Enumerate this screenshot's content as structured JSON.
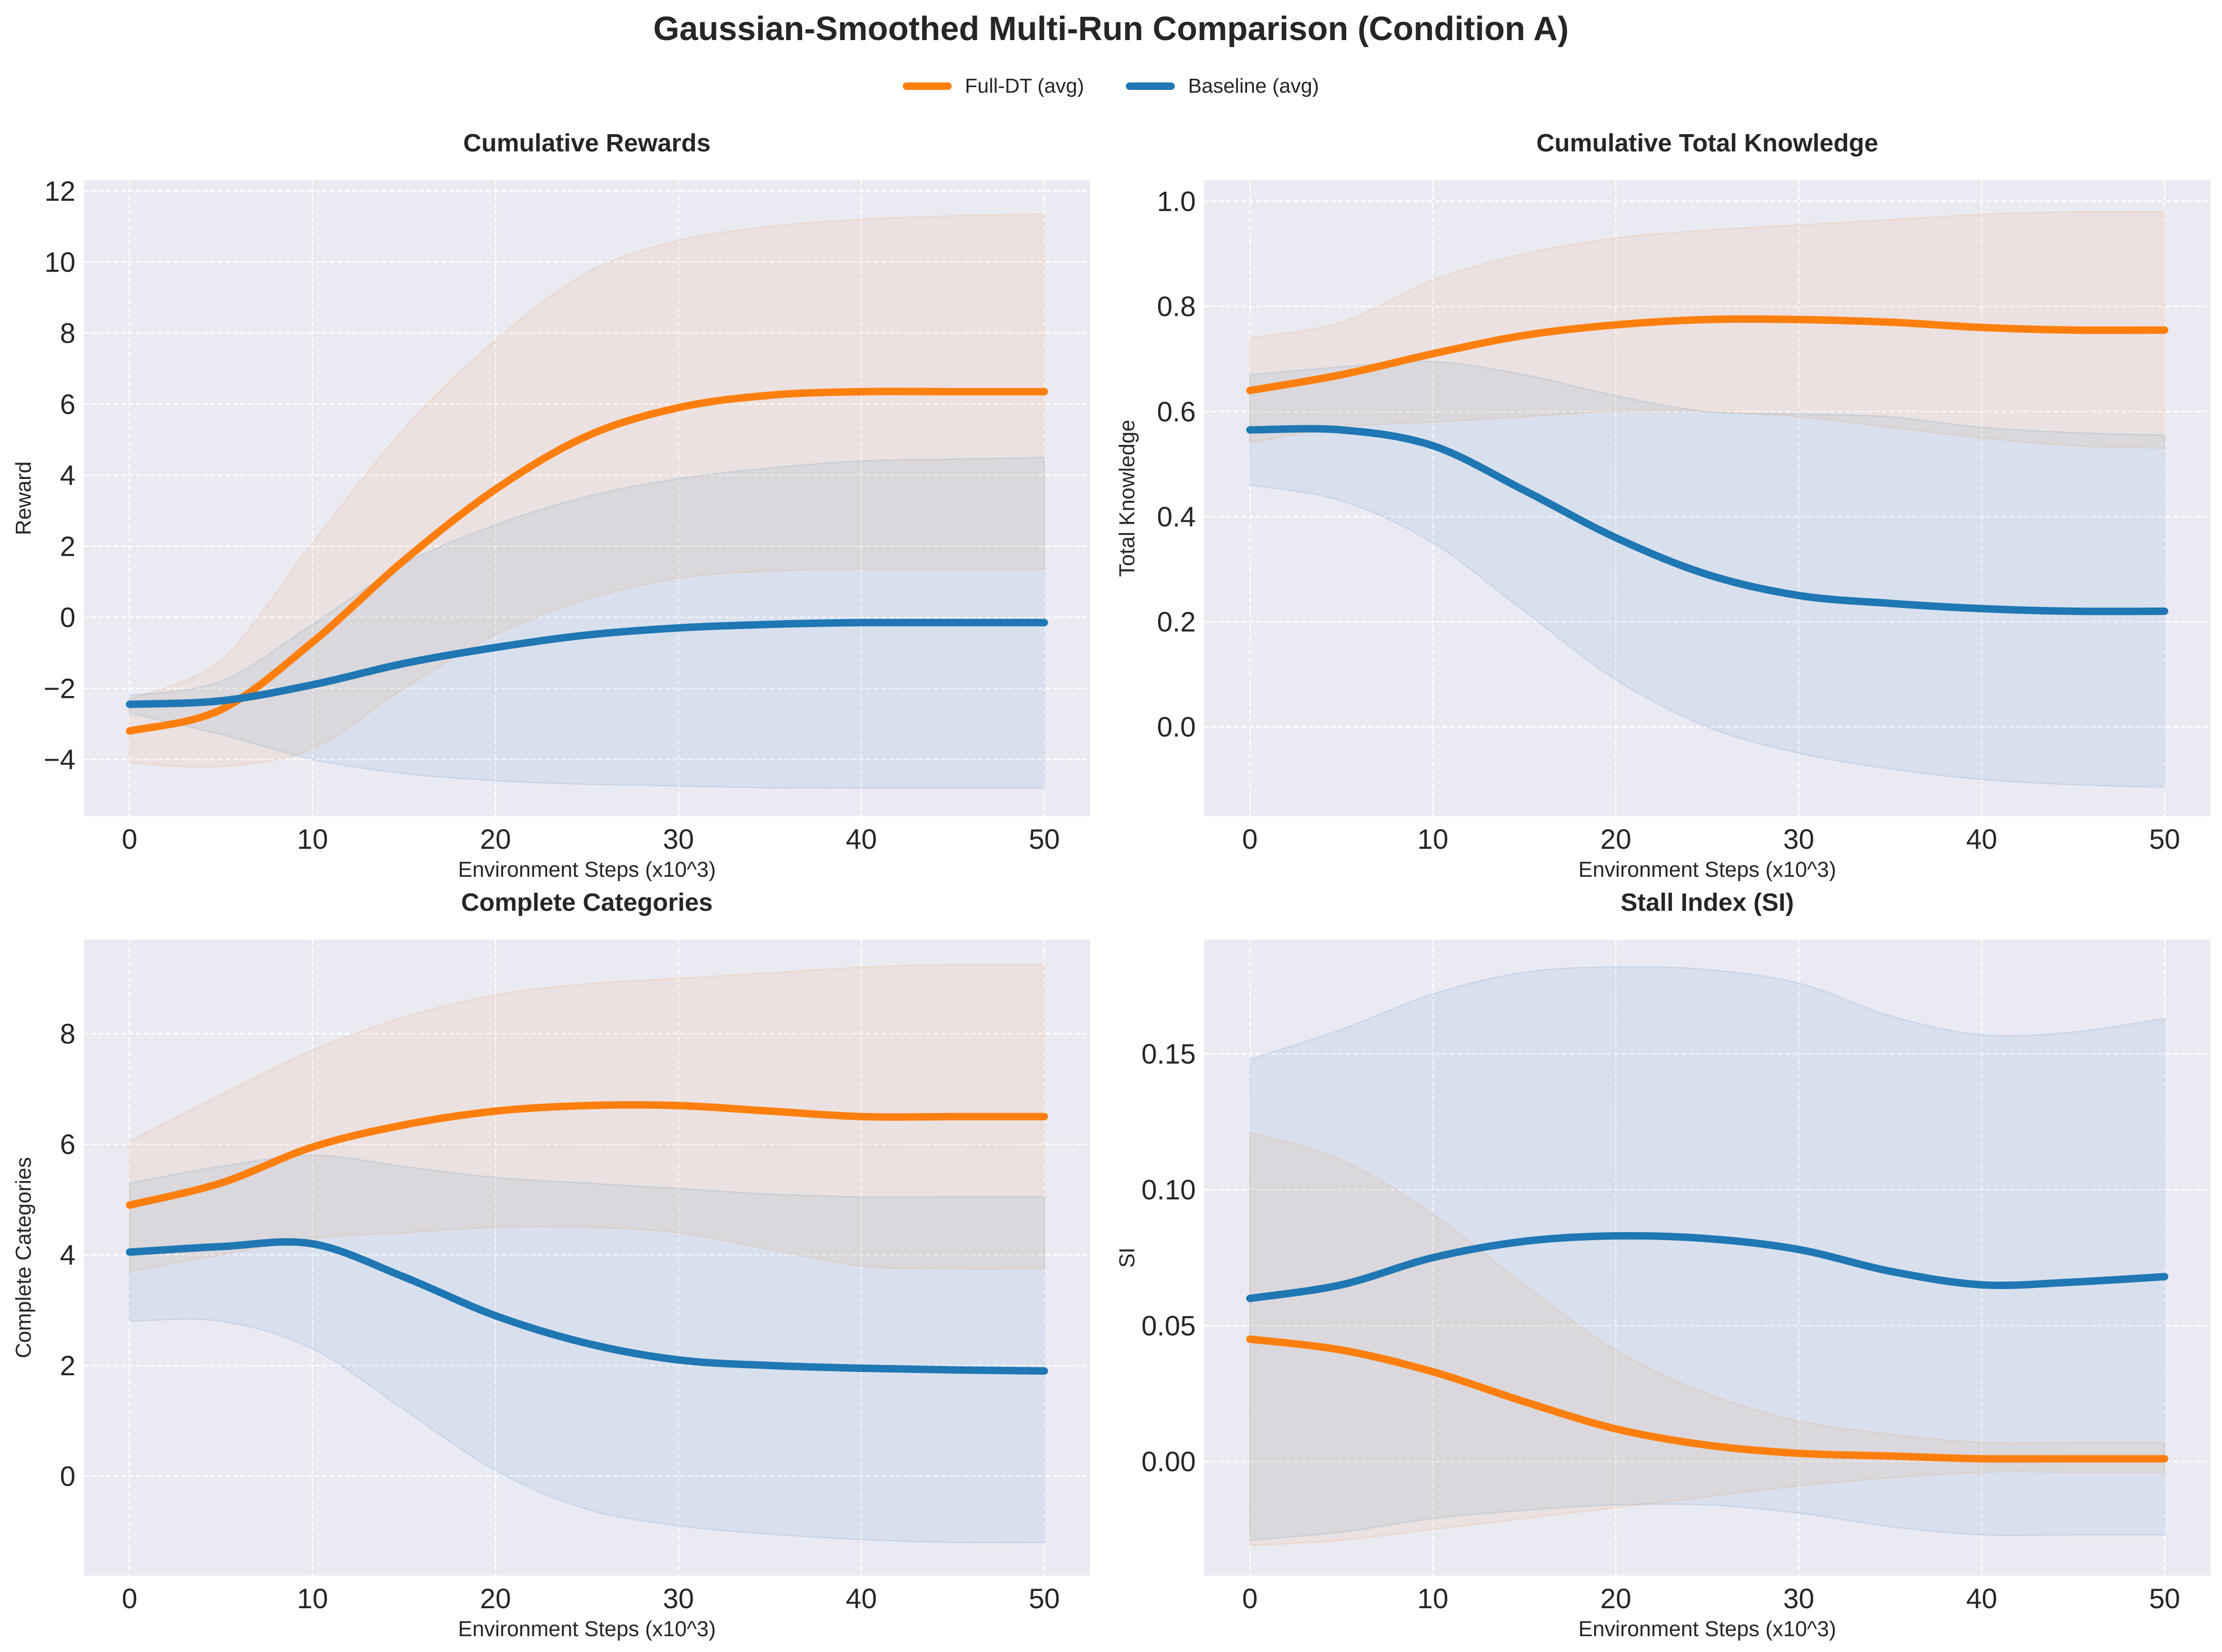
{
  "figure": {
    "title": "Gaussian-Smoothed Multi-Run Comparison (Condition A)",
    "colors": {
      "full_dt": "#ff7f0e",
      "baseline": "#1f77b4",
      "axes_bg": "#eaeaf2",
      "grid": "#ffffff"
    },
    "legend": [
      {
        "label": "Full-DT (avg)",
        "color": "#ff7f0e"
      },
      {
        "label": "Baseline (avg)",
        "color": "#1f77b4"
      }
    ]
  },
  "chart_data": [
    {
      "type": "line",
      "title": "Cumulative Rewards",
      "xlabel": "Environment Steps (x10^3)",
      "ylabel": "Reward",
      "xlim": [
        -2.5,
        52.5
      ],
      "ylim": [
        -5.6,
        12.3
      ],
      "xticks": [
        0,
        10,
        20,
        30,
        40,
        50
      ],
      "xtick_labels": [
        "0",
        "10",
        "20",
        "30",
        "40",
        "50"
      ],
      "yticks": [
        -4,
        -2,
        0,
        2,
        4,
        6,
        8,
        10,
        12
      ],
      "ytick_labels": [
        "−4",
        "−2",
        "0",
        "2",
        "4",
        "6",
        "8",
        "10",
        "12"
      ],
      "grid": true,
      "x": [
        0,
        5,
        10,
        15,
        20,
        25,
        30,
        35,
        40,
        45,
        50
      ],
      "series": [
        {
          "name": "Full-DT (avg)",
          "color": "#ff7f0e",
          "values": [
            -3.2,
            -2.6,
            -0.7,
            1.6,
            3.6,
            5.1,
            5.9,
            6.25,
            6.35,
            6.35,
            6.35
          ],
          "lower": [
            -4.1,
            -4.2,
            -3.7,
            -2.0,
            -0.5,
            0.5,
            1.1,
            1.3,
            1.35,
            1.35,
            1.35
          ],
          "upper": [
            -2.3,
            -1.2,
            2.1,
            5.3,
            7.8,
            9.7,
            10.6,
            11.0,
            11.2,
            11.3,
            11.35
          ]
        },
        {
          "name": "Baseline (avg)",
          "color": "#1f77b4",
          "values": [
            -2.45,
            -2.35,
            -1.9,
            -1.3,
            -0.85,
            -0.5,
            -0.3,
            -0.2,
            -0.15,
            -0.15,
            -0.15
          ],
          "lower": [
            -2.7,
            -3.3,
            -4.0,
            -4.4,
            -4.6,
            -4.7,
            -4.75,
            -4.8,
            -4.8,
            -4.8,
            -4.8
          ],
          "upper": [
            -2.2,
            -1.8,
            -0.2,
            1.5,
            2.6,
            3.4,
            3.9,
            4.2,
            4.4,
            4.45,
            4.5
          ]
        }
      ]
    },
    {
      "type": "line",
      "title": "Cumulative Total Knowledge",
      "xlabel": "Environment Steps (x10^3)",
      "ylabel": "Total Knowledge",
      "xlim": [
        -2.5,
        52.5
      ],
      "ylim": [
        -0.17,
        1.04
      ],
      "xticks": [
        0,
        10,
        20,
        30,
        40,
        50
      ],
      "xtick_labels": [
        "0",
        "10",
        "20",
        "30",
        "40",
        "50"
      ],
      "yticks": [
        0.0,
        0.2,
        0.4,
        0.6,
        0.8,
        1.0
      ],
      "ytick_labels": [
        "0.0",
        "0.2",
        "0.4",
        "0.6",
        "0.8",
        "1.0"
      ],
      "grid": true,
      "x": [
        0,
        5,
        10,
        15,
        20,
        25,
        30,
        35,
        40,
        45,
        50
      ],
      "series": [
        {
          "name": "Full-DT (avg)",
          "color": "#ff7f0e",
          "values": [
            0.64,
            0.67,
            0.71,
            0.745,
            0.765,
            0.775,
            0.775,
            0.77,
            0.76,
            0.755,
            0.755
          ],
          "lower": [
            0.54,
            0.57,
            0.58,
            0.59,
            0.6,
            0.6,
            0.59,
            0.57,
            0.55,
            0.535,
            0.53
          ],
          "upper": [
            0.74,
            0.77,
            0.85,
            0.9,
            0.93,
            0.945,
            0.955,
            0.965,
            0.975,
            0.98,
            0.98
          ]
        },
        {
          "name": "Baseline (avg)",
          "color": "#1f77b4",
          "values": [
            0.565,
            0.565,
            0.535,
            0.45,
            0.36,
            0.29,
            0.25,
            0.235,
            0.225,
            0.22,
            0.22
          ],
          "lower": [
            0.46,
            0.43,
            0.35,
            0.22,
            0.09,
            0.0,
            -0.05,
            -0.08,
            -0.1,
            -0.11,
            -0.115
          ],
          "upper": [
            0.67,
            0.685,
            0.695,
            0.67,
            0.63,
            0.6,
            0.595,
            0.59,
            0.57,
            0.56,
            0.555
          ]
        }
      ]
    },
    {
      "type": "line",
      "title": "Complete Categories",
      "xlabel": "Environment Steps (x10^3)",
      "ylabel": "Complete Categories",
      "xlim": [
        -2.5,
        52.5
      ],
      "ylim": [
        -1.8,
        9.7
      ],
      "xticks": [
        0,
        10,
        20,
        30,
        40,
        50
      ],
      "xtick_labels": [
        "0",
        "10",
        "20",
        "30",
        "40",
        "50"
      ],
      "yticks": [
        0,
        2,
        4,
        6,
        8
      ],
      "ytick_labels": [
        "0",
        "2",
        "4",
        "6",
        "8"
      ],
      "grid": true,
      "x": [
        0,
        5,
        10,
        15,
        20,
        25,
        30,
        35,
        40,
        45,
        50
      ],
      "series": [
        {
          "name": "Full-DT (avg)",
          "color": "#ff7f0e",
          "values": [
            4.9,
            5.3,
            5.95,
            6.35,
            6.6,
            6.7,
            6.7,
            6.6,
            6.5,
            6.5,
            6.5
          ],
          "lower": [
            3.7,
            4.0,
            4.3,
            4.4,
            4.5,
            4.5,
            4.4,
            4.1,
            3.8,
            3.75,
            3.75
          ],
          "upper": [
            6.05,
            6.9,
            7.7,
            8.3,
            8.7,
            8.9,
            9.0,
            9.1,
            9.2,
            9.25,
            9.25
          ]
        },
        {
          "name": "Baseline (avg)",
          "color": "#1f77b4",
          "values": [
            4.05,
            4.15,
            4.2,
            3.6,
            2.9,
            2.4,
            2.1,
            2.0,
            1.95,
            1.92,
            1.9
          ],
          "lower": [
            2.8,
            2.8,
            2.3,
            1.2,
            0.1,
            -0.6,
            -0.9,
            -1.05,
            -1.15,
            -1.2,
            -1.2
          ],
          "upper": [
            5.3,
            5.6,
            5.8,
            5.6,
            5.4,
            5.3,
            5.2,
            5.1,
            5.05,
            5.05,
            5.05
          ]
        }
      ]
    },
    {
      "type": "line",
      "title": "Stall Index (SI)",
      "xlabel": "Environment Steps (x10^3)",
      "ylabel": "SI",
      "xlim": [
        -2.5,
        52.5
      ],
      "ylim": [
        -0.042,
        0.192
      ],
      "xticks": [
        0,
        10,
        20,
        30,
        40,
        50
      ],
      "xtick_labels": [
        "0",
        "10",
        "20",
        "30",
        "40",
        "50"
      ],
      "yticks": [
        0.0,
        0.05,
        0.1,
        0.15
      ],
      "ytick_labels": [
        "0.00",
        "0.05",
        "0.10",
        "0.15"
      ],
      "grid": true,
      "x": [
        0,
        5,
        10,
        15,
        20,
        25,
        30,
        35,
        40,
        45,
        50
      ],
      "series": [
        {
          "name": "Full-DT (avg)",
          "color": "#ff7f0e",
          "values": [
            0.045,
            0.041,
            0.033,
            0.022,
            0.012,
            0.006,
            0.003,
            0.002,
            0.001,
            0.001,
            0.001
          ],
          "lower": [
            -0.031,
            -0.029,
            -0.025,
            -0.021,
            -0.017,
            -0.013,
            -0.009,
            -0.006,
            -0.004,
            -0.004,
            -0.004
          ],
          "upper": [
            0.121,
            0.111,
            0.091,
            0.065,
            0.041,
            0.025,
            0.015,
            0.01,
            0.007,
            0.007,
            0.007
          ]
        },
        {
          "name": "Baseline (avg)",
          "color": "#1f77b4",
          "values": [
            0.06,
            0.065,
            0.075,
            0.081,
            0.083,
            0.082,
            0.078,
            0.07,
            0.065,
            0.066,
            0.068
          ],
          "lower": [
            -0.029,
            -0.026,
            -0.021,
            -0.018,
            -0.016,
            -0.016,
            -0.019,
            -0.024,
            -0.027,
            -0.027,
            -0.027
          ],
          "upper": [
            0.148,
            0.159,
            0.172,
            0.18,
            0.182,
            0.181,
            0.176,
            0.164,
            0.157,
            0.158,
            0.163
          ]
        }
      ]
    }
  ]
}
